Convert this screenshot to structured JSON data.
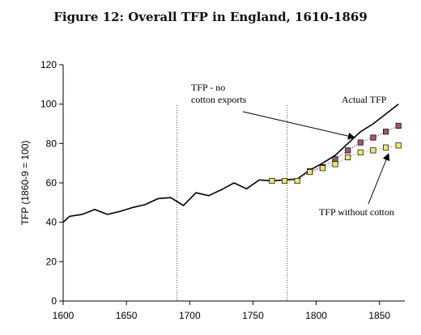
{
  "chart_data": {
    "type": "line",
    "title": "Figure 12: Overall TFP in England, 1610-1869",
    "ylabel": "TFP (1860-9 = 100)",
    "xlabel": "",
    "xlim": [
      1600,
      1870
    ],
    "ylim": [
      0,
      120
    ],
    "xticks": [
      1600,
      1650,
      1700,
      1750,
      1800,
      1850
    ],
    "yticks": [
      0,
      20,
      40,
      60,
      80,
      100,
      120
    ],
    "grid": false,
    "vlines": [
      1690,
      1777
    ],
    "series": [
      {
        "name": "Actual TFP",
        "color": "#000000",
        "marker": "none",
        "x": [
          1600,
          1605,
          1615,
          1625,
          1635,
          1645,
          1655,
          1665,
          1675,
          1685,
          1695,
          1705,
          1715,
          1725,
          1735,
          1745,
          1755,
          1765,
          1775,
          1785,
          1795,
          1805,
          1815,
          1825,
          1835,
          1845,
          1855,
          1865
        ],
        "y": [
          40,
          43,
          44,
          46.5,
          44,
          45.5,
          47.5,
          49,
          52,
          52.5,
          48.5,
          55,
          53.5,
          56.5,
          60,
          57,
          61.5,
          61,
          61.5,
          62,
          66.5,
          70,
          74,
          80,
          86,
          90,
          95,
          100
        ]
      },
      {
        "name": "TFP - no cotton exports",
        "color": "#a05a5a",
        "marker": "square",
        "x": [
          1795,
          1805,
          1815,
          1825,
          1835,
          1845,
          1855,
          1865
        ],
        "y": [
          66,
          68,
          72,
          76.5,
          80.5,
          83,
          86,
          89
        ]
      },
      {
        "name": "TFP without cotton",
        "color": "#e8e870",
        "marker": "square",
        "x": [
          1765,
          1775,
          1785,
          1795,
          1805,
          1815,
          1825,
          1835,
          1845,
          1855,
          1865
        ],
        "y": [
          61,
          61,
          61,
          65.5,
          67.5,
          69.5,
          73,
          75.5,
          76.5,
          78,
          79
        ]
      }
    ],
    "annotations": {
      "no_cotton_exports_line1": "TFP - no",
      "no_cotton_exports_line2": "cotton exports",
      "actual": "Actual TFP",
      "without_cotton": "TFP without cotton"
    }
  }
}
